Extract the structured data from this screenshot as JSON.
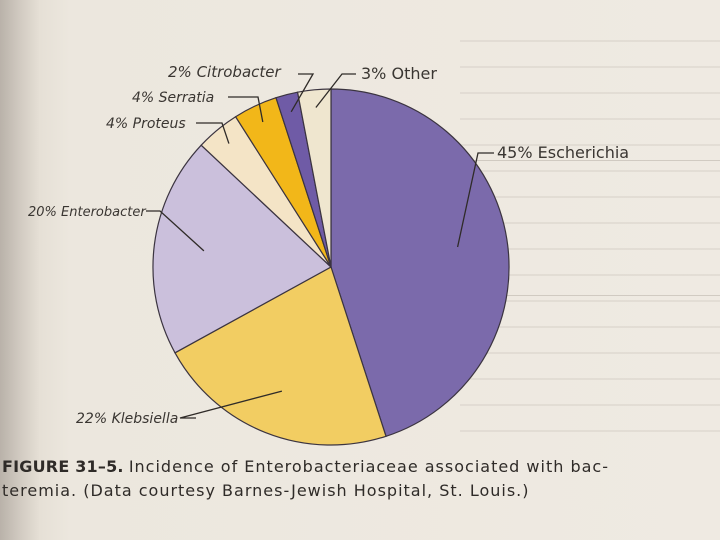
{
  "chart_data": {
    "type": "pie",
    "title": "",
    "slices": [
      {
        "label": "45% Escherichia",
        "value": 45,
        "color": "#7b6aab"
      },
      {
        "label": "22% Klebsiella",
        "value": 22,
        "color": "#f2cd62"
      },
      {
        "label": "20% Enterobacter",
        "value": 20,
        "color": "#cbc0dc"
      },
      {
        "label": "4% Proteus",
        "value": 4,
        "color": "#f4e4c6"
      },
      {
        "label": "4% Serratia",
        "value": 4,
        "color": "#f2b719"
      },
      {
        "label": "2% Citrobacter",
        "value": 2,
        "color": "#6f5ba6"
      },
      {
        "label": "3% Other",
        "value": 3,
        "color": "#efe6cf"
      }
    ]
  },
  "caption": {
    "figure": "FIGURE 31–5.",
    "line1": "Incidence of Enterobacteriaceae associated with bac-",
    "line2": "teremia. (Data courtesy Barnes-Jewish Hospital, St. Louis.)"
  }
}
